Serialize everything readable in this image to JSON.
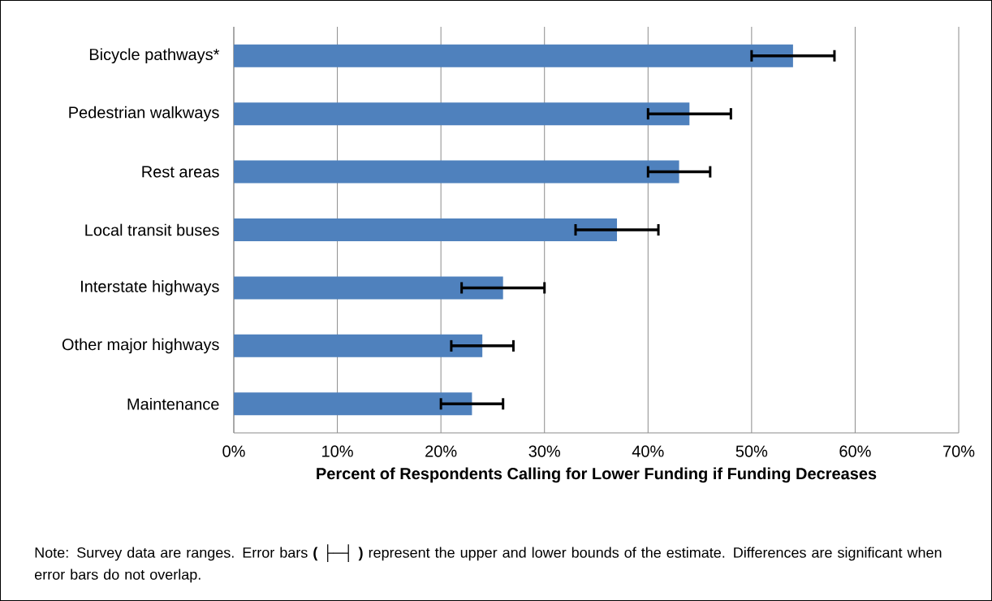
{
  "chart_data": {
    "type": "bar",
    "orientation": "horizontal",
    "categories": [
      "Bicycle pathways*",
      "Pedestrian walkways",
      "Rest areas",
      "Local transit buses",
      "Interstate highways",
      "Other major highways",
      "Maintenance"
    ],
    "values": [
      54,
      44,
      43,
      37,
      26,
      24,
      23
    ],
    "errors": [
      [
        50,
        58
      ],
      [
        40,
        48
      ],
      [
        40,
        46
      ],
      [
        33,
        41
      ],
      [
        22,
        30
      ],
      [
        21,
        27
      ],
      [
        20,
        26
      ]
    ],
    "color": "#4f81bd",
    "xlim": [
      0,
      70
    ],
    "xticks": [
      {
        "value": 0,
        "label": "0%"
      },
      {
        "value": 10,
        "label": "10%"
      },
      {
        "value": 20,
        "label": "20%"
      },
      {
        "value": 30,
        "label": "30%"
      },
      {
        "value": 40,
        "label": "40%"
      },
      {
        "value": 50,
        "label": "50%"
      },
      {
        "value": 60,
        "label": "60%"
      },
      {
        "value": 70,
        "label": "70%"
      }
    ],
    "xlabel": "Percent of Respondents Calling for Lower Funding if Funding Decreases",
    "grid": "x",
    "annotations": [
      "Note:  Survey data are ranges.  Error bars **( ├─┤ )** represent the upper and lower bounds of the estimate. Differences are significant when error bars do not overlap."
    ]
  }
}
